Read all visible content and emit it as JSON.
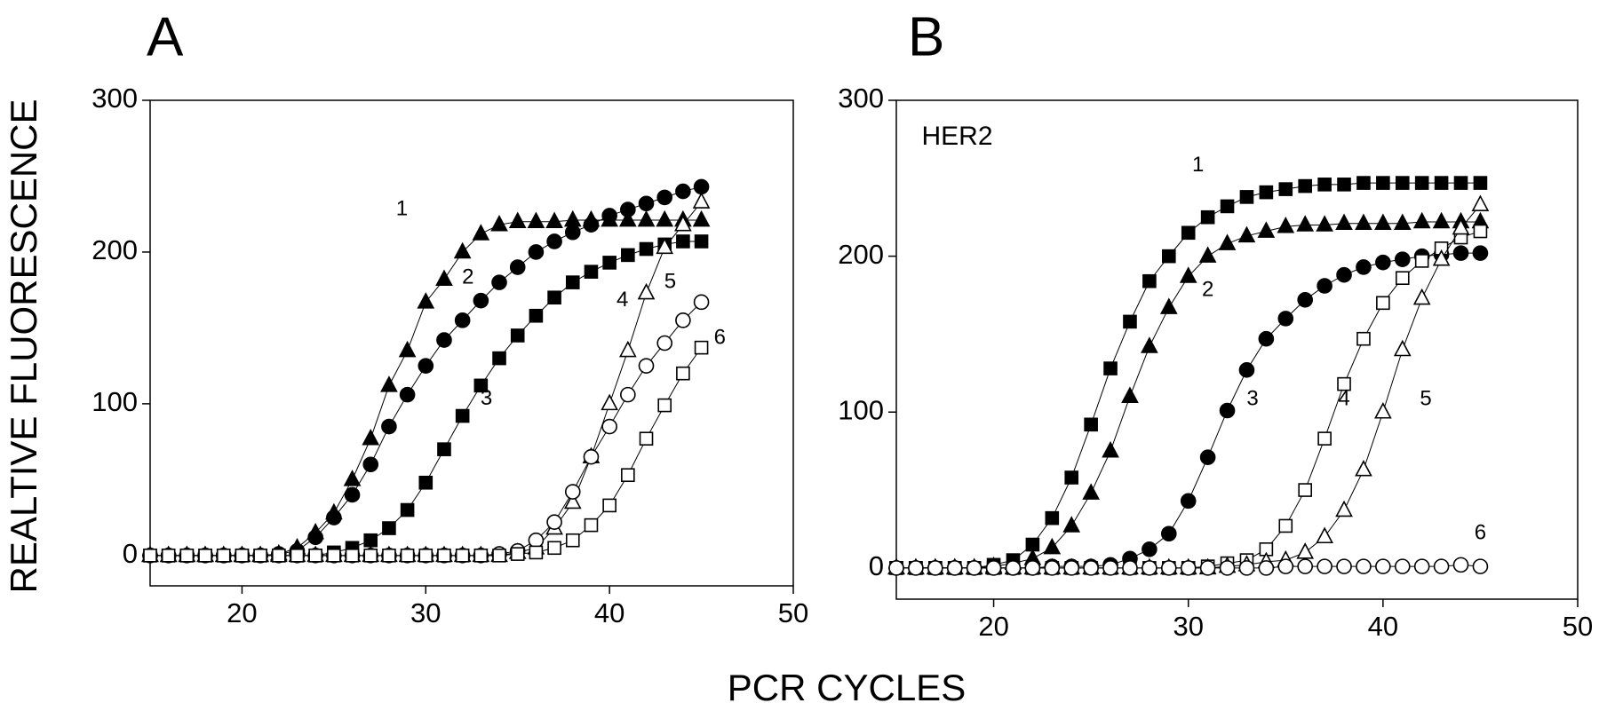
{
  "ylabel": "REALTIVE FLUORESCENCE",
  "xlabel": "PCR CYCLES",
  "chart_data": [
    {
      "type": "line",
      "title": "A",
      "x": [
        15,
        16,
        17,
        18,
        19,
        20,
        21,
        22,
        23,
        24,
        25,
        26,
        27,
        28,
        29,
        30,
        31,
        32,
        33,
        34,
        35,
        36,
        37,
        38,
        39,
        40,
        41,
        42,
        43,
        44,
        45
      ],
      "xlim": [
        15,
        50
      ],
      "ylim": [
        -20,
        300
      ],
      "xticks": [
        20,
        30,
        40,
        50
      ],
      "yticks": [
        0,
        100,
        200,
        300
      ],
      "series": [
        {
          "name": "1",
          "marker": "triangle",
          "filled": true,
          "color": "#000000",
          "values": [
            0,
            0,
            0,
            0,
            0,
            0,
            0,
            1,
            5,
            15,
            28,
            50,
            77,
            112,
            135,
            167,
            182,
            200,
            212,
            218,
            220,
            220,
            220,
            221,
            221,
            221,
            221,
            221,
            221,
            221,
            221
          ]
        },
        {
          "name": "2",
          "marker": "circle",
          "filled": true,
          "color": "#000000",
          "values": [
            0,
            0,
            0,
            0,
            0,
            0,
            0,
            1,
            3,
            12,
            25,
            40,
            60,
            85,
            106,
            125,
            142,
            155,
            168,
            180,
            190,
            200,
            207,
            213,
            218,
            224,
            228,
            232,
            236,
            240,
            243
          ]
        },
        {
          "name": "3",
          "marker": "square",
          "filled": true,
          "color": "#000000",
          "values": [
            0,
            0,
            0,
            0,
            0,
            0,
            0,
            0,
            0,
            0,
            2,
            5,
            10,
            18,
            30,
            48,
            70,
            92,
            112,
            130,
            145,
            158,
            170,
            180,
            187,
            193,
            198,
            202,
            205,
            207,
            207
          ]
        },
        {
          "name": "4",
          "marker": "triangle",
          "filled": false,
          "color": "#000000",
          "values": [
            0,
            0,
            0,
            0,
            0,
            0,
            0,
            0,
            0,
            0,
            0,
            0,
            0,
            0,
            0,
            0,
            0,
            0,
            0,
            0,
            2,
            5,
            18,
            35,
            65,
            100,
            135,
            173,
            203,
            218,
            233
          ]
        },
        {
          "name": "5",
          "marker": "circle",
          "filled": false,
          "color": "#000000",
          "values": [
            0,
            0,
            0,
            0,
            0,
            0,
            0,
            0,
            0,
            0,
            0,
            0,
            0,
            0,
            0,
            0,
            0,
            0,
            0,
            1,
            3,
            10,
            22,
            42,
            65,
            85,
            106,
            125,
            140,
            155,
            167
          ]
        },
        {
          "name": "6",
          "marker": "square",
          "filled": false,
          "color": "#000000",
          "values": [
            0,
            0,
            0,
            0,
            0,
            0,
            0,
            0,
            0,
            0,
            0,
            0,
            0,
            0,
            0,
            0,
            0,
            0,
            0,
            0,
            1,
            2,
            5,
            10,
            20,
            33,
            53,
            77,
            99,
            120,
            137
          ]
        }
      ]
    },
    {
      "type": "line",
      "title": "B",
      "annotation": "HER2",
      "x": [
        15,
        16,
        17,
        18,
        19,
        20,
        21,
        22,
        23,
        24,
        25,
        26,
        27,
        28,
        29,
        30,
        31,
        32,
        33,
        34,
        35,
        36,
        37,
        38,
        39,
        40,
        41,
        42,
        43,
        44,
        45
      ],
      "xlim": [
        15,
        50
      ],
      "ylim": [
        -20,
        300
      ],
      "xticks": [
        20,
        30,
        40,
        50
      ],
      "yticks": [
        0,
        100,
        200,
        300
      ],
      "series": [
        {
          "name": "1",
          "marker": "square",
          "filled": true,
          "color": "#000000",
          "values": [
            0,
            0,
            0,
            0,
            0,
            2,
            5,
            15,
            32,
            58,
            92,
            128,
            158,
            184,
            200,
            215,
            225,
            232,
            238,
            241,
            243,
            245,
            246,
            246,
            247,
            247,
            247,
            247,
            247,
            247,
            247
          ]
        },
        {
          "name": "2",
          "marker": "triangle",
          "filled": true,
          "color": "#000000",
          "values": [
            0,
            0,
            0,
            0,
            0,
            1,
            3,
            6,
            13,
            27,
            48,
            75,
            110,
            142,
            167,
            187,
            200,
            208,
            213,
            216,
            219,
            220,
            220,
            221,
            221,
            221,
            221,
            222,
            222,
            222,
            222
          ]
        },
        {
          "name": "3",
          "marker": "circle",
          "filled": true,
          "color": "#000000",
          "values": [
            0,
            0,
            0,
            0,
            0,
            0,
            0,
            0,
            1,
            1,
            1,
            2,
            6,
            12,
            22,
            43,
            71,
            101,
            127,
            147,
            160,
            172,
            181,
            188,
            193,
            196,
            198,
            200,
            201,
            202,
            202
          ]
        },
        {
          "name": "4",
          "marker": "square",
          "filled": false,
          "color": "#000000",
          "values": [
            0,
            0,
            0,
            0,
            0,
            0,
            0,
            0,
            0,
            0,
            0,
            0,
            0,
            0,
            0,
            0,
            1,
            3,
            5,
            12,
            27,
            50,
            83,
            118,
            147,
            170,
            186,
            197,
            205,
            212,
            216
          ]
        },
        {
          "name": "5",
          "marker": "triangle",
          "filled": false,
          "color": "#000000",
          "values": [
            0,
            0,
            0,
            0,
            0,
            0,
            0,
            0,
            0,
            0,
            0,
            0,
            0,
            0,
            0,
            0,
            0,
            1,
            2,
            4,
            5,
            10,
            20,
            37,
            63,
            100,
            140,
            173,
            198,
            218,
            233
          ]
        },
        {
          "name": "6",
          "marker": "circle",
          "filled": false,
          "color": "#000000",
          "values": [
            0,
            0,
            0,
            0,
            0,
            0,
            0,
            0,
            0,
            0,
            0,
            0,
            0,
            0,
            0,
            0,
            0,
            0,
            0,
            0,
            1,
            1,
            1,
            1,
            1,
            1,
            1,
            1,
            1,
            2,
            1
          ]
        }
      ]
    }
  ]
}
